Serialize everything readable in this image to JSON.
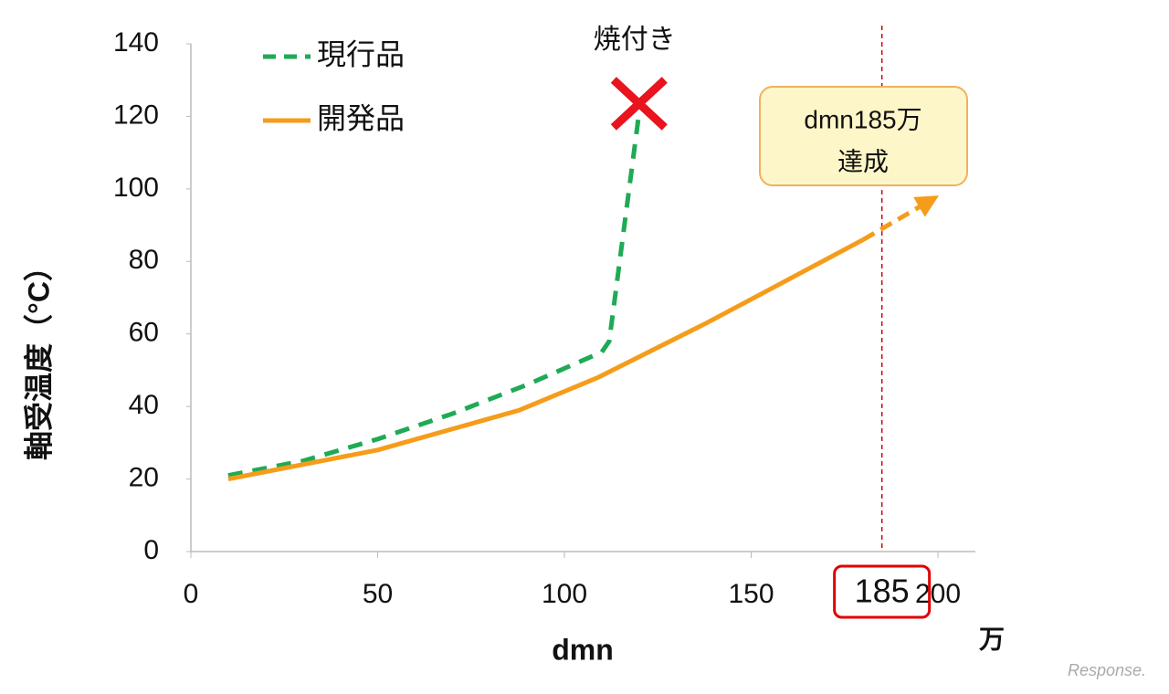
{
  "chart_data": {
    "type": "line",
    "x_label": "dmn",
    "x_unit": "万",
    "y_label": "軸受温度（°C）",
    "xlim": [
      0,
      210
    ],
    "xticks": [
      0,
      50,
      100,
      150,
      200
    ],
    "ylim": [
      0,
      140
    ],
    "yticks": [
      0,
      20,
      40,
      60,
      80,
      100,
      120,
      140
    ],
    "legend": "top-left",
    "series": [
      {
        "name": "現行品",
        "color": "#1faa55",
        "dashed": true,
        "x": [
          10,
          30,
          50,
          70,
          90,
          110,
          112,
          120
        ],
        "values": [
          21,
          25,
          31,
          38,
          46,
          55,
          58,
          121
        ]
      },
      {
        "name": "開発品",
        "color": "#f59c1a",
        "dashed": false,
        "x": [
          10,
          50,
          88,
          109,
          138,
          149,
          180
        ],
        "values": [
          20,
          28,
          39,
          48,
          63,
          69,
          86
        ]
      }
    ],
    "reference_line": {
      "x": 185,
      "color": "#cc0000",
      "label": "185"
    },
    "failure_label": "焼付き",
    "callout": [
      "dmn185万",
      "達成"
    ],
    "watermark": "Response."
  }
}
